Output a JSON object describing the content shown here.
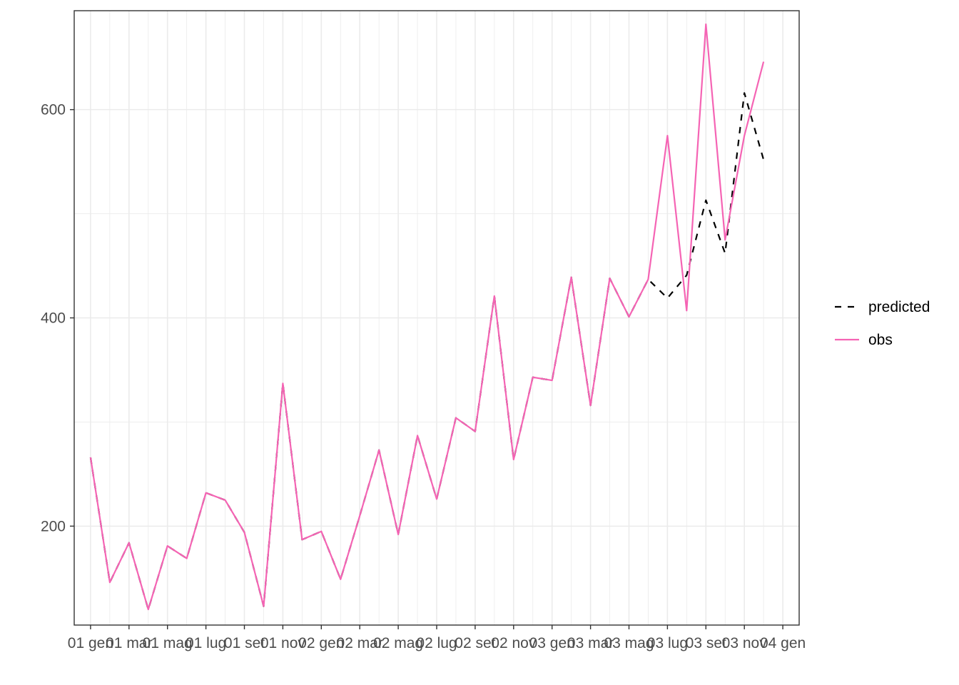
{
  "chart_data": {
    "type": "line",
    "title": "",
    "xlabel": "",
    "ylabel": "",
    "x": [
      "2001-01",
      "2001-02",
      "2001-03",
      "2001-04",
      "2001-05",
      "2001-06",
      "2001-07",
      "2001-08",
      "2001-09",
      "2001-10",
      "2001-11",
      "2001-12",
      "2002-01",
      "2002-02",
      "2002-03",
      "2002-04",
      "2002-05",
      "2002-06",
      "2002-07",
      "2002-08",
      "2002-09",
      "2002-10",
      "2002-11",
      "2002-12",
      "2003-01",
      "2003-02",
      "2003-03",
      "2003-04",
      "2003-05",
      "2003-06",
      "2003-07",
      "2003-08",
      "2003-09",
      "2003-10",
      "2003-11",
      "2003-12"
    ],
    "x_ticks": [
      "01 gen",
      "01 mar",
      "01 mag",
      "01 lug",
      "01 set",
      "01 nov",
      "02 gen",
      "02 mar",
      "02 mag",
      "02 lug",
      "02 set",
      "02 nov",
      "03 gen",
      "03 mar",
      "03 mag",
      "03 lug",
      "03 set",
      "03 nov",
      "04 gen"
    ],
    "x_tick_dates": [
      "2001-01",
      "2001-03",
      "2001-05",
      "2001-07",
      "2001-09",
      "2001-11",
      "2002-01",
      "2002-03",
      "2002-05",
      "2002-07",
      "2002-09",
      "2002-11",
      "2003-01",
      "2003-03",
      "2003-05",
      "2003-07",
      "2003-09",
      "2003-11",
      "2004-01"
    ],
    "xlim": [
      "2000-12",
      "2004-01"
    ],
    "y_ticks": [
      200,
      400,
      600
    ],
    "ylim": [
      105,
      695
    ],
    "grid": true,
    "legend_position": "right",
    "series": [
      {
        "name": "predicted",
        "color": "#000000",
        "dash": "dashed",
        "values": [
          266,
          146,
          184,
          120,
          181,
          169,
          232,
          225,
          194,
          123,
          337,
          187,
          195,
          149,
          210,
          273,
          192,
          287,
          226,
          304,
          291,
          421,
          264,
          343,
          340,
          439,
          316,
          438,
          401,
          437,
          419,
          441,
          513,
          462,
          616,
          552
        ]
      },
      {
        "name": "obs",
        "color": "#f564b4",
        "dash": "solid",
        "values": [
          266,
          146,
          184,
          120,
          181,
          169,
          232,
          225,
          194,
          123,
          337,
          187,
          195,
          149,
          210,
          273,
          192,
          287,
          226,
          304,
          291,
          421,
          264,
          343,
          340,
          439,
          316,
          438,
          401,
          437,
          575,
          407,
          682,
          475,
          575,
          646
        ]
      }
    ]
  }
}
